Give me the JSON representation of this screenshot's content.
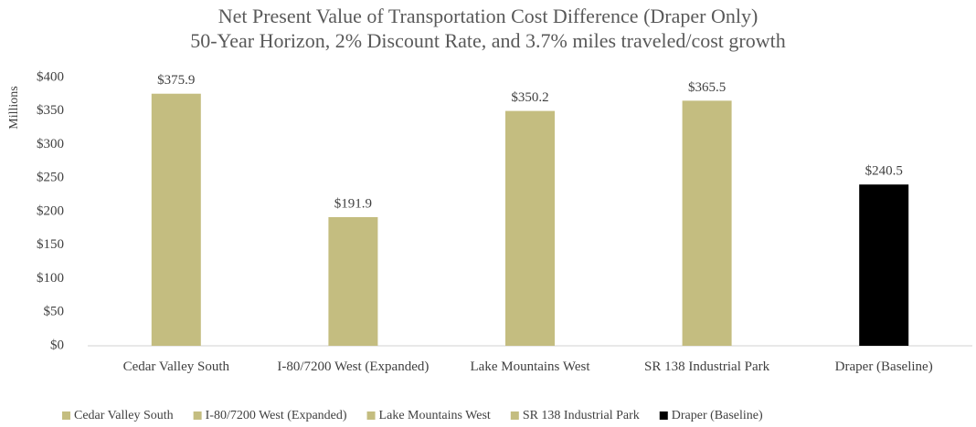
{
  "chart_data": {
    "type": "bar",
    "title": "Net Present Value of Transportation Cost Difference (Draper Only)",
    "subtitle": "50-Year Horizon, 2% Discount Rate, and 3.7% miles traveled/cost growth",
    "y_label": "Millions",
    "categories": [
      "Cedar Valley South",
      "I-80/7200 West (Expanded)",
      "Lake Mountains West",
      "SR 138 Industrial Park",
      "Draper (Baseline)"
    ],
    "series": [
      {
        "name": "Cedar Valley South",
        "color": "#c4bd80",
        "values": [
          375.9,
          null,
          null,
          null,
          null
        ],
        "value_labels": [
          "$375.9",
          null,
          null,
          null,
          null
        ]
      },
      {
        "name": "I-80/7200 West (Expanded)",
        "color": "#c4bd80",
        "values": [
          null,
          191.9,
          null,
          null,
          null
        ],
        "value_labels": [
          null,
          "$191.9",
          null,
          null,
          null
        ]
      },
      {
        "name": "Lake Mountains West",
        "color": "#c4bd80",
        "values": [
          null,
          null,
          350.2,
          null,
          null
        ],
        "value_labels": [
          null,
          null,
          "$350.2",
          null,
          null
        ]
      },
      {
        "name": "SR 138 Industrial Park",
        "color": "#c4bd80",
        "values": [
          null,
          null,
          null,
          365.5,
          null
        ],
        "value_labels": [
          null,
          null,
          null,
          "$365.5",
          null
        ]
      },
      {
        "name": "Draper (Baseline)",
        "color": "#000000",
        "values": [
          null,
          null,
          null,
          null,
          240.5
        ],
        "value_labels": [
          null,
          null,
          null,
          null,
          "$240.5"
        ]
      }
    ],
    "ylim": [
      0,
      400
    ],
    "yticks": [
      {
        "value": 0,
        "label": "$0"
      },
      {
        "value": 50,
        "label": "$50"
      },
      {
        "value": 100,
        "label": "$100"
      },
      {
        "value": 150,
        "label": "$150"
      },
      {
        "value": 200,
        "label": "$200"
      },
      {
        "value": 250,
        "label": "$250"
      },
      {
        "value": 300,
        "label": "$300"
      },
      {
        "value": 350,
        "label": "$350"
      },
      {
        "value": 400,
        "label": "$400"
      }
    ],
    "legend": "bottom"
  }
}
